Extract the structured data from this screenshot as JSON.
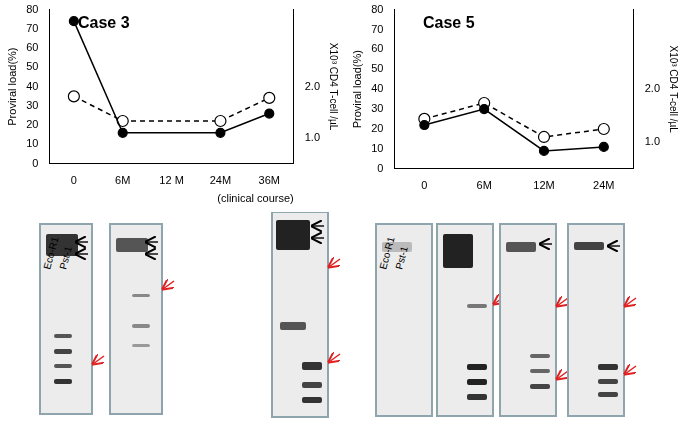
{
  "chart_data": [
    {
      "type": "line",
      "title": "Case 3",
      "categories": [
        "0",
        "6M",
        "12 M",
        "24M",
        "36M"
      ],
      "xlabel": "(clinical course)",
      "ylabel": "Proviral load(%)",
      "y2label": "X10³ CD4 T-cell /µL",
      "ylim": [
        0,
        80
      ],
      "yticks": [
        0,
        10,
        20,
        30,
        40,
        50,
        60,
        70,
        80
      ],
      "y2lim": [
        0.5,
        3.5
      ],
      "y2ticks": [
        {
          "value": 1,
          "label": "1.0"
        },
        {
          "value": 2,
          "label": "2.0"
        }
      ],
      "grid": false,
      "series": [
        {
          "color": "#000000",
          "marker": "circle",
          "line_style": "solid",
          "values": [
            74,
            16,
            null,
            16,
            26
          ]
        },
        {
          "color": "#000000",
          "marker": "open_circle",
          "line_style": "dashed",
          "axis": "y2",
          "values": [
            1.81,
            1.33,
            null,
            1.33,
            1.78
          ]
        }
      ]
    },
    {
      "type": "line",
      "title": "Case 5",
      "categories": [
        "0",
        "6M",
        "12M",
        "24M"
      ],
      "ylabel": "Proviral load(%)",
      "y2label": "X10³ CD4 T-cell /µL",
      "ylim": [
        0,
        80
      ],
      "yticks": [
        0,
        10,
        20,
        30,
        40,
        50,
        60,
        70,
        80
      ],
      "y2lim": [
        0.5,
        3.5
      ],
      "y2ticks": [
        {
          "value": 1,
          "label": "1.0"
        },
        {
          "value": 2,
          "label": "2.0"
        }
      ],
      "grid": false,
      "series": [
        {
          "color": "#000000",
          "marker": "circle",
          "line_style": "solid",
          "values": [
            22,
            30,
            9,
            11
          ]
        },
        {
          "color": "#000000",
          "marker": "open_circle",
          "line_style": "dashed",
          "axis": "y2",
          "values": [
            1.44,
            1.74,
            1.1,
            1.25
          ]
        }
      ]
    }
  ],
  "blot_panels": [
    {
      "lane_labels": [
        "Eco-R1",
        "Pst-1"
      ]
    },
    {
      "lane_labels": [
        "Eco-R1",
        "Pst-1"
      ]
    }
  ]
}
